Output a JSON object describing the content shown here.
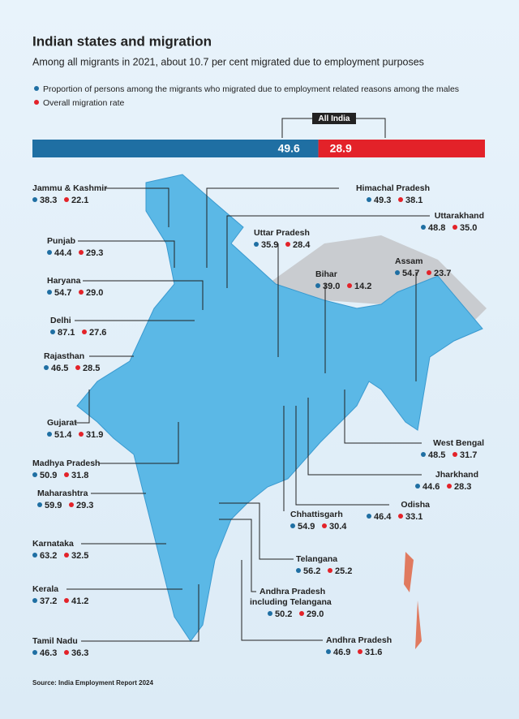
{
  "header": {
    "title": "Indian states and migration",
    "subtitle": "Among all migrants in 2021, about 10.7 per cent migrated due to employment purposes"
  },
  "legend": [
    "Proportion of persons among the migrants who migrated due to employment related reasons among the males",
    "Overall migration rate"
  ],
  "all_india": {
    "label": "All India",
    "employment": 49.6,
    "overall": 28.9
  },
  "states": [
    {
      "name": "Jammu & Kashmir",
      "employment": 38.3,
      "overall": 22.1
    },
    {
      "name": "Punjab",
      "employment": 44.4,
      "overall": 29.3
    },
    {
      "name": "Haryana",
      "employment": 54.7,
      "overall": {
        "value": 29,
        "label": "29.0"
      }
    },
    {
      "name": "Delhi",
      "employment": 87.1,
      "overall": 27.6
    },
    {
      "name": "Rajasthan",
      "employment": 46.5,
      "overall": 28.5
    },
    {
      "name": "Gujarat",
      "employment": 51.4,
      "overall": 31.9
    },
    {
      "name": "Madhya Pradesh",
      "employment": 50.9,
      "overall": 31.8
    },
    {
      "name": "Maharashtra",
      "employment": 59.9,
      "overall": 29.3
    },
    {
      "name": "Karnataka",
      "employment": 63.2,
      "overall": 32.5
    },
    {
      "name": "Kerala",
      "employment": 37.2,
      "overall": 41.2
    },
    {
      "name": "Tamil Nadu",
      "employment": 46.3,
      "overall": 36.3
    },
    {
      "name": "Himachal Pradesh",
      "employment": 49.3,
      "overall": 38.1
    },
    {
      "name": "Uttarakhand",
      "employment": 48.8,
      "overall": {
        "value": 35,
        "label": "35.0"
      }
    },
    {
      "name": "Uttar Pradesh",
      "employment": 35.9,
      "overall": 28.4
    },
    {
      "name": "Bihar",
      "employment": {
        "value": 39,
        "label": "39.0"
      },
      "overall": 14.2
    },
    {
      "name": "Assam",
      "employment": 54.7,
      "overall": 23.7
    },
    {
      "name": "West Bengal",
      "employment": 48.5,
      "overall": 31.7
    },
    {
      "name": "Jharkhand",
      "employment": 44.6,
      "overall": 28.3
    },
    {
      "name": "Odisha",
      "employment": 46.4,
      "overall": 33.1
    },
    {
      "name": "Chhattisgarh",
      "employment": 54.9,
      "overall": 30.4
    },
    {
      "name": "Telangana",
      "employment": 56.2,
      "overall": 25.2
    },
    {
      "name": "Andhra Pradesh including Telangana",
      "employment": 50.2,
      "overall": {
        "value": 29,
        "label": "29.0"
      }
    },
    {
      "name": "Andhra Pradesh",
      "employment": 46.9,
      "overall": 31.6
    }
  ],
  "source": "Source: India Employment Report 2024"
}
